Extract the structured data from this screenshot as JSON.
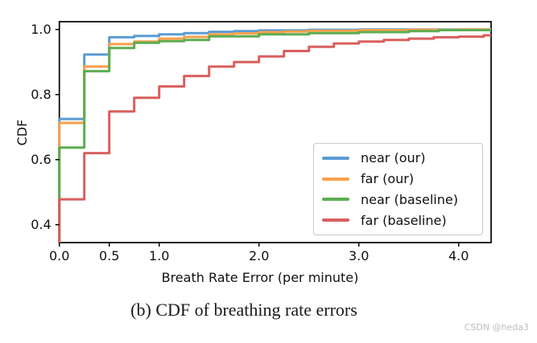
{
  "page": {
    "background": "#ffffff"
  },
  "caption": "(b) CDF of breathing rate errors",
  "watermark": "CSDN @heda3",
  "chart_data": {
    "type": "line",
    "subtype": "step-cdf",
    "title": "",
    "xlabel": "Breath Rate Error (per minute)",
    "ylabel": "CDF",
    "xlim": [
      0,
      4.325
    ],
    "ylim": [
      0.345,
      1.024
    ],
    "xticks": [
      0.0,
      0.5,
      1.0,
      2.0,
      3.0,
      4.0
    ],
    "xtick_labels": [
      "0.0",
      "0.5",
      "1.0",
      "2.0",
      "3.0",
      "4.0"
    ],
    "yticks": [
      0.4,
      0.6,
      0.8,
      1.0
    ],
    "ytick_labels": [
      "0.4",
      "0.6",
      "0.8",
      "1.0"
    ],
    "grid": false,
    "legend_position": "lower-right-inside",
    "axis_color": "#000000",
    "line_width": 3,
    "series": [
      {
        "name": "near (our)",
        "color": "#5a9bd4",
        "points": [
          [
            0,
            0.725
          ],
          [
            0.25,
            0.923
          ],
          [
            0.5,
            0.976
          ],
          [
            0.75,
            0.98
          ],
          [
            1.0,
            0.985
          ],
          [
            1.25,
            0.989
          ],
          [
            1.5,
            0.993
          ],
          [
            1.75,
            0.995
          ],
          [
            2.0,
            0.997
          ],
          [
            2.5,
            0.999
          ],
          [
            3.0,
            1.0
          ]
        ]
      },
      {
        "name": "far (our)",
        "color": "#f9a04a",
        "points": [
          [
            0,
            0.713
          ],
          [
            0.25,
            0.886
          ],
          [
            0.5,
            0.955
          ],
          [
            0.75,
            0.963
          ],
          [
            1.0,
            0.972
          ],
          [
            1.25,
            0.977
          ],
          [
            1.5,
            0.985
          ],
          [
            1.75,
            0.988
          ],
          [
            2.0,
            0.992
          ],
          [
            2.25,
            0.994
          ],
          [
            2.5,
            0.996
          ],
          [
            3.0,
            0.998
          ],
          [
            3.5,
            0.999
          ],
          [
            4.0,
            1.0
          ]
        ]
      },
      {
        "name": "near (baseline)",
        "color": "#5cad52",
        "points": [
          [
            0,
            0.637
          ],
          [
            0.25,
            0.872
          ],
          [
            0.5,
            0.943
          ],
          [
            0.75,
            0.959
          ],
          [
            1.0,
            0.964
          ],
          [
            1.25,
            0.968
          ],
          [
            1.5,
            0.979
          ],
          [
            2.0,
            0.985
          ],
          [
            2.5,
            0.989
          ],
          [
            3.0,
            0.992
          ],
          [
            3.5,
            0.995
          ],
          [
            3.8,
            0.998
          ]
        ]
      },
      {
        "name": "far (baseline)",
        "color": "#d95f5e",
        "points": [
          [
            0,
            0.478
          ],
          [
            0.25,
            0.62
          ],
          [
            0.5,
            0.748
          ],
          [
            0.75,
            0.79
          ],
          [
            1.0,
            0.825
          ],
          [
            1.25,
            0.857
          ],
          [
            1.5,
            0.886
          ],
          [
            1.75,
            0.9
          ],
          [
            2.0,
            0.917
          ],
          [
            2.25,
            0.934
          ],
          [
            2.5,
            0.947
          ],
          [
            2.75,
            0.957
          ],
          [
            3.0,
            0.963
          ],
          [
            3.25,
            0.968
          ],
          [
            3.5,
            0.972
          ],
          [
            3.75,
            0.976
          ],
          [
            4.0,
            0.978
          ],
          [
            4.25,
            0.982
          ]
        ]
      }
    ]
  }
}
